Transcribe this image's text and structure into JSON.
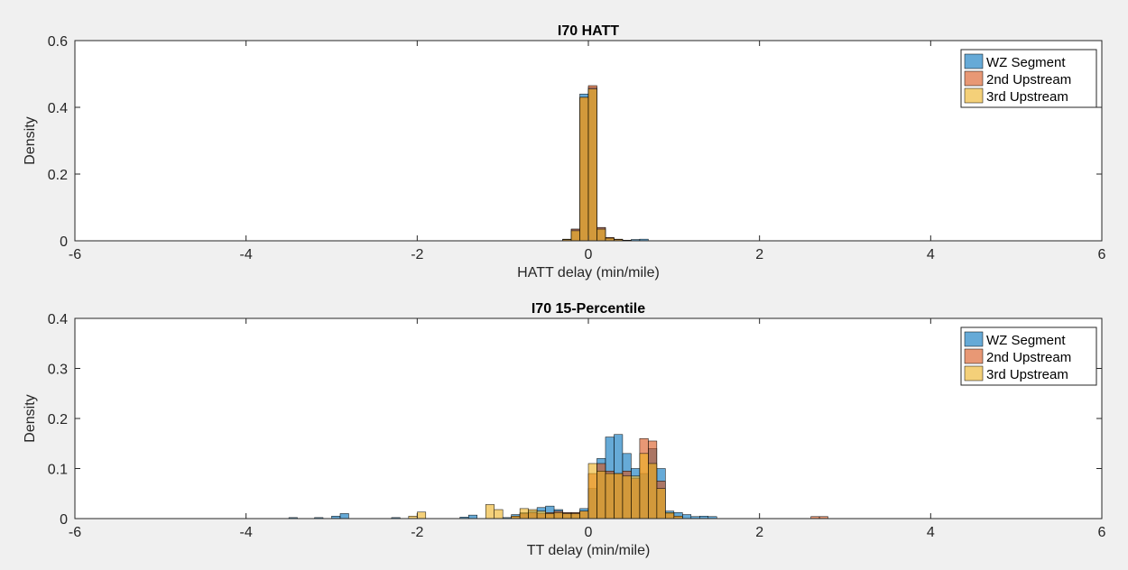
{
  "chart_data": [
    {
      "type": "bar",
      "title": "I70 HATT",
      "xlabel": "HATT delay (min/mile)",
      "ylabel": "Density",
      "xlim": [
        -6,
        6
      ],
      "ylim": [
        0,
        0.6
      ],
      "xticks": [
        -6,
        -4,
        -2,
        0,
        2,
        4,
        6
      ],
      "yticks": [
        0,
        0.2,
        0.4,
        0.6
      ],
      "xtick_labels": [
        "-6",
        "-4",
        "-2",
        "0",
        "2",
        "4",
        "6"
      ],
      "ytick_labels": [
        "0",
        "0.2",
        "0.4",
        "0.6"
      ],
      "legend_position": "top-right",
      "bin_width": 0.1,
      "series": [
        {
          "name": "WZ Segment",
          "color": "#0072BD",
          "bins": [
            [
              -0.3,
              0.005
            ],
            [
              -0.2,
              0.035
            ],
            [
              -0.1,
              0.44
            ],
            [
              0.0,
              0.46
            ],
            [
              0.1,
              0.04
            ],
            [
              0.2,
              0.008
            ],
            [
              0.3,
              0.004
            ],
            [
              0.4,
              0.002
            ],
            [
              0.5,
              0.004
            ],
            [
              0.6,
              0.005
            ]
          ]
        },
        {
          "name": "2nd Upstream",
          "color": "#D95319",
          "bins": [
            [
              -0.3,
              0.004
            ],
            [
              -0.2,
              0.035
            ],
            [
              -0.1,
              0.43
            ],
            [
              0.0,
              0.465
            ],
            [
              0.1,
              0.04
            ],
            [
              0.2,
              0.01
            ],
            [
              0.3,
              0.005
            ],
            [
              0.4,
              0.002
            ]
          ]
        },
        {
          "name": "3rd Upstream",
          "color": "#EDB120",
          "bins": [
            [
              -0.3,
              0.004
            ],
            [
              -0.2,
              0.03
            ],
            [
              -0.1,
              0.43
            ],
            [
              0.0,
              0.455
            ],
            [
              0.1,
              0.035
            ],
            [
              0.2,
              0.008
            ],
            [
              0.3,
              0.004
            ],
            [
              0.4,
              0.002
            ]
          ]
        }
      ]
    },
    {
      "type": "bar",
      "title": "I70 15-Percentile",
      "xlabel": "TT delay (min/mile)",
      "ylabel": "Density",
      "xlim": [
        -6,
        6
      ],
      "ylim": [
        0,
        0.4
      ],
      "xticks": [
        -6,
        -4,
        -2,
        0,
        2,
        4,
        6
      ],
      "yticks": [
        0,
        0.1,
        0.2,
        0.3,
        0.4
      ],
      "xtick_labels": [
        "-6",
        "-4",
        "-2",
        "0",
        "2",
        "4",
        "6"
      ],
      "ytick_labels": [
        "0",
        "0.1",
        "0.2",
        "0.3",
        "0.4"
      ],
      "legend_position": "top-right",
      "bin_width": 0.1,
      "series": [
        {
          "name": "WZ Segment",
          "color": "#0072BD",
          "bins": [
            [
              -3.5,
              0.002
            ],
            [
              -3.2,
              0.002
            ],
            [
              -3.0,
              0.005
            ],
            [
              -2.9,
              0.01
            ],
            [
              -2.3,
              0.002
            ],
            [
              -1.5,
              0.003
            ],
            [
              -1.4,
              0.007
            ],
            [
              -1.0,
              0.002
            ],
            [
              -0.9,
              0.008
            ],
            [
              -0.8,
              0.012
            ],
            [
              -0.7,
              0.015
            ],
            [
              -0.6,
              0.022
            ],
            [
              -0.5,
              0.025
            ],
            [
              -0.4,
              0.018
            ],
            [
              -0.3,
              0.012
            ],
            [
              -0.2,
              0.012
            ],
            [
              -0.1,
              0.02
            ],
            [
              0.0,
              0.06
            ],
            [
              0.1,
              0.12
            ],
            [
              0.2,
              0.163
            ],
            [
              0.3,
              0.168
            ],
            [
              0.4,
              0.13
            ],
            [
              0.5,
              0.1
            ],
            [
              0.6,
              0.09
            ],
            [
              0.7,
              0.14
            ],
            [
              0.8,
              0.1
            ],
            [
              0.9,
              0.015
            ],
            [
              1.0,
              0.012
            ],
            [
              1.1,
              0.008
            ],
            [
              1.2,
              0.004
            ],
            [
              1.3,
              0.005
            ],
            [
              1.4,
              0.004
            ]
          ]
        },
        {
          "name": "2nd Upstream",
          "color": "#D95319",
          "bins": [
            [
              -0.9,
              0.005
            ],
            [
              -0.8,
              0.01
            ],
            [
              -0.7,
              0.012
            ],
            [
              -0.6,
              0.01
            ],
            [
              -0.5,
              0.012
            ],
            [
              -0.4,
              0.015
            ],
            [
              -0.3,
              0.012
            ],
            [
              -0.2,
              0.012
            ],
            [
              -0.1,
              0.015
            ],
            [
              0.0,
              0.09
            ],
            [
              0.1,
              0.11
            ],
            [
              0.2,
              0.095
            ],
            [
              0.3,
              0.09
            ],
            [
              0.4,
              0.095
            ],
            [
              0.5,
              0.08
            ],
            [
              0.6,
              0.16
            ],
            [
              0.7,
              0.155
            ],
            [
              0.8,
              0.075
            ],
            [
              0.9,
              0.01
            ],
            [
              1.0,
              0.005
            ],
            [
              2.6,
              0.004
            ],
            [
              2.7,
              0.004
            ]
          ]
        },
        {
          "name": "3rd Upstream",
          "color": "#EDB120",
          "bins": [
            [
              -2.1,
              0.005
            ],
            [
              -2.0,
              0.013
            ],
            [
              -1.2,
              0.028
            ],
            [
              -1.1,
              0.018
            ],
            [
              -0.9,
              0.005
            ],
            [
              -0.8,
              0.02
            ],
            [
              -0.7,
              0.018
            ],
            [
              -0.6,
              0.015
            ],
            [
              -0.5,
              0.01
            ],
            [
              -0.4,
              0.012
            ],
            [
              -0.3,
              0.01
            ],
            [
              -0.2,
              0.01
            ],
            [
              -0.1,
              0.015
            ],
            [
              0.0,
              0.11
            ],
            [
              0.1,
              0.095
            ],
            [
              0.2,
              0.09
            ],
            [
              0.3,
              0.09
            ],
            [
              0.4,
              0.085
            ],
            [
              0.5,
              0.085
            ],
            [
              0.6,
              0.13
            ],
            [
              0.7,
              0.11
            ],
            [
              0.8,
              0.06
            ],
            [
              0.9,
              0.012
            ],
            [
              1.0,
              0.005
            ]
          ]
        }
      ]
    }
  ]
}
